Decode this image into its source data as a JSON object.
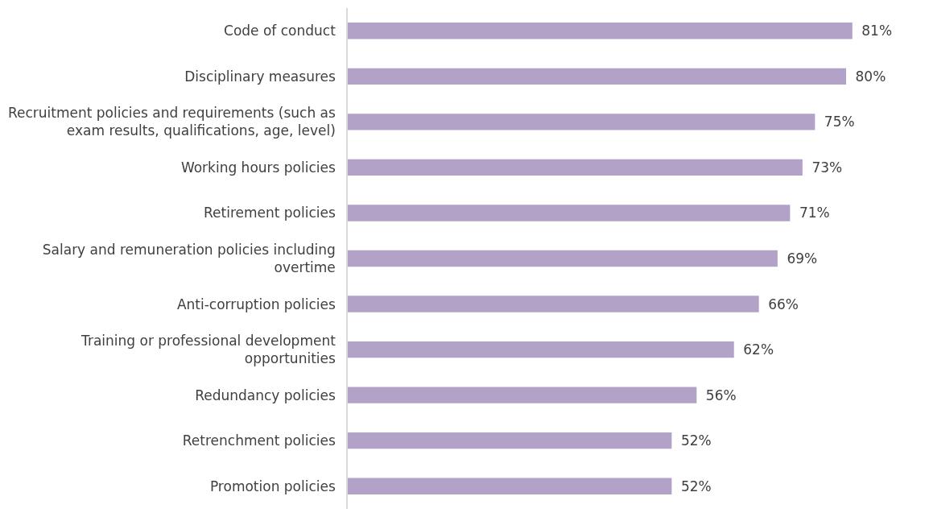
{
  "chart_data": {
    "type": "bar",
    "orientation": "horizontal",
    "categories": [
      "Code of conduct",
      "Disciplinary measures",
      "Recruitment policies and requirements (such as exam results, qualifications, age, level)",
      "Working hours policies",
      "Retirement policies",
      "Salary and remuneration policies including overtime",
      "Anti-corruption policies",
      "Training or professional development opportunities",
      "Redundancy policies",
      "Retrenchment policies",
      "Promotion policies"
    ],
    "values": [
      81,
      80,
      75,
      73,
      71,
      69,
      66,
      62,
      56,
      52,
      52
    ],
    "value_labels": [
      "81%",
      "80%",
      "75%",
      "73%",
      "71%",
      "69%",
      "66%",
      "62%",
      "56%",
      "52%",
      "52%"
    ],
    "color": "#b3a2c7",
    "tick_labels": "y",
    "grid": false
  }
}
